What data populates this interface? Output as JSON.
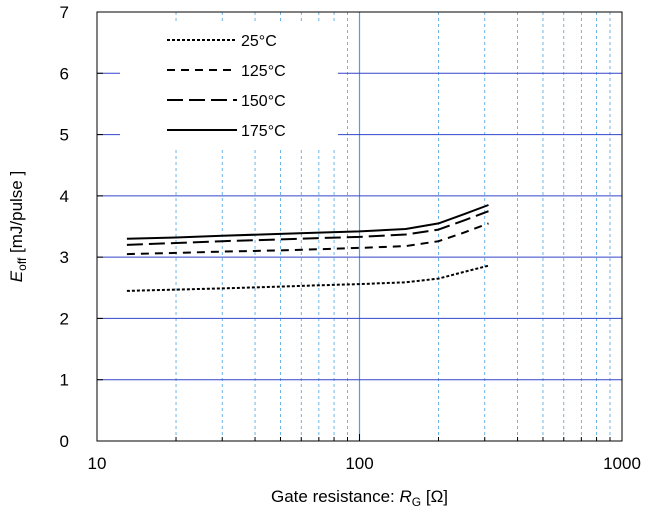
{
  "chart_data": {
    "type": "line",
    "x_scale": "log",
    "xlim": [
      10,
      1000
    ],
    "ylim": [
      0,
      7
    ],
    "x_ticks": [
      10,
      100,
      1000
    ],
    "x_tick_labels": [
      "10",
      "100",
      "1000"
    ],
    "y_ticks": [
      0,
      1,
      2,
      3,
      4,
      5,
      6,
      7
    ],
    "y_tick_labels": [
      "0",
      "1",
      "2",
      "3",
      "4",
      "5",
      "6",
      "7"
    ],
    "xlabel": {
      "prefix": "Gate resistance: ",
      "symbol": "R",
      "sub": "G",
      "suffix": " [Ω]"
    },
    "ylabel": {
      "symbol": "E",
      "sub": "off",
      "suffix": " [mJ/pulse ]"
    },
    "grid": true,
    "legend_position": "top-left",
    "colors": {
      "grid_major": "#3344cc",
      "grid_minor": "#4aa3e0",
      "series": "#000000"
    },
    "series": [
      {
        "name": "25°C",
        "dash": "dotted",
        "x": [
          13,
          20,
          30,
          50,
          70,
          100,
          150,
          200,
          250,
          310
        ],
        "y": [
          2.45,
          2.47,
          2.49,
          2.52,
          2.54,
          2.56,
          2.59,
          2.65,
          2.76,
          2.86
        ]
      },
      {
        "name": "125°C",
        "dash": "short-dash",
        "x": [
          13,
          20,
          30,
          50,
          70,
          100,
          150,
          200,
          250,
          310
        ],
        "y": [
          3.05,
          3.07,
          3.09,
          3.11,
          3.13,
          3.15,
          3.18,
          3.26,
          3.4,
          3.55
        ]
      },
      {
        "name": "150°C",
        "dash": "long-dash",
        "x": [
          13,
          20,
          30,
          50,
          70,
          100,
          150,
          200,
          250,
          310
        ],
        "y": [
          3.2,
          3.23,
          3.26,
          3.29,
          3.31,
          3.33,
          3.37,
          3.45,
          3.6,
          3.75
        ]
      },
      {
        "name": "175°C",
        "dash": "solid",
        "x": [
          13,
          20,
          30,
          50,
          70,
          100,
          150,
          200,
          250,
          310
        ],
        "y": [
          3.3,
          3.32,
          3.35,
          3.38,
          3.4,
          3.42,
          3.46,
          3.55,
          3.7,
          3.85
        ]
      }
    ]
  }
}
